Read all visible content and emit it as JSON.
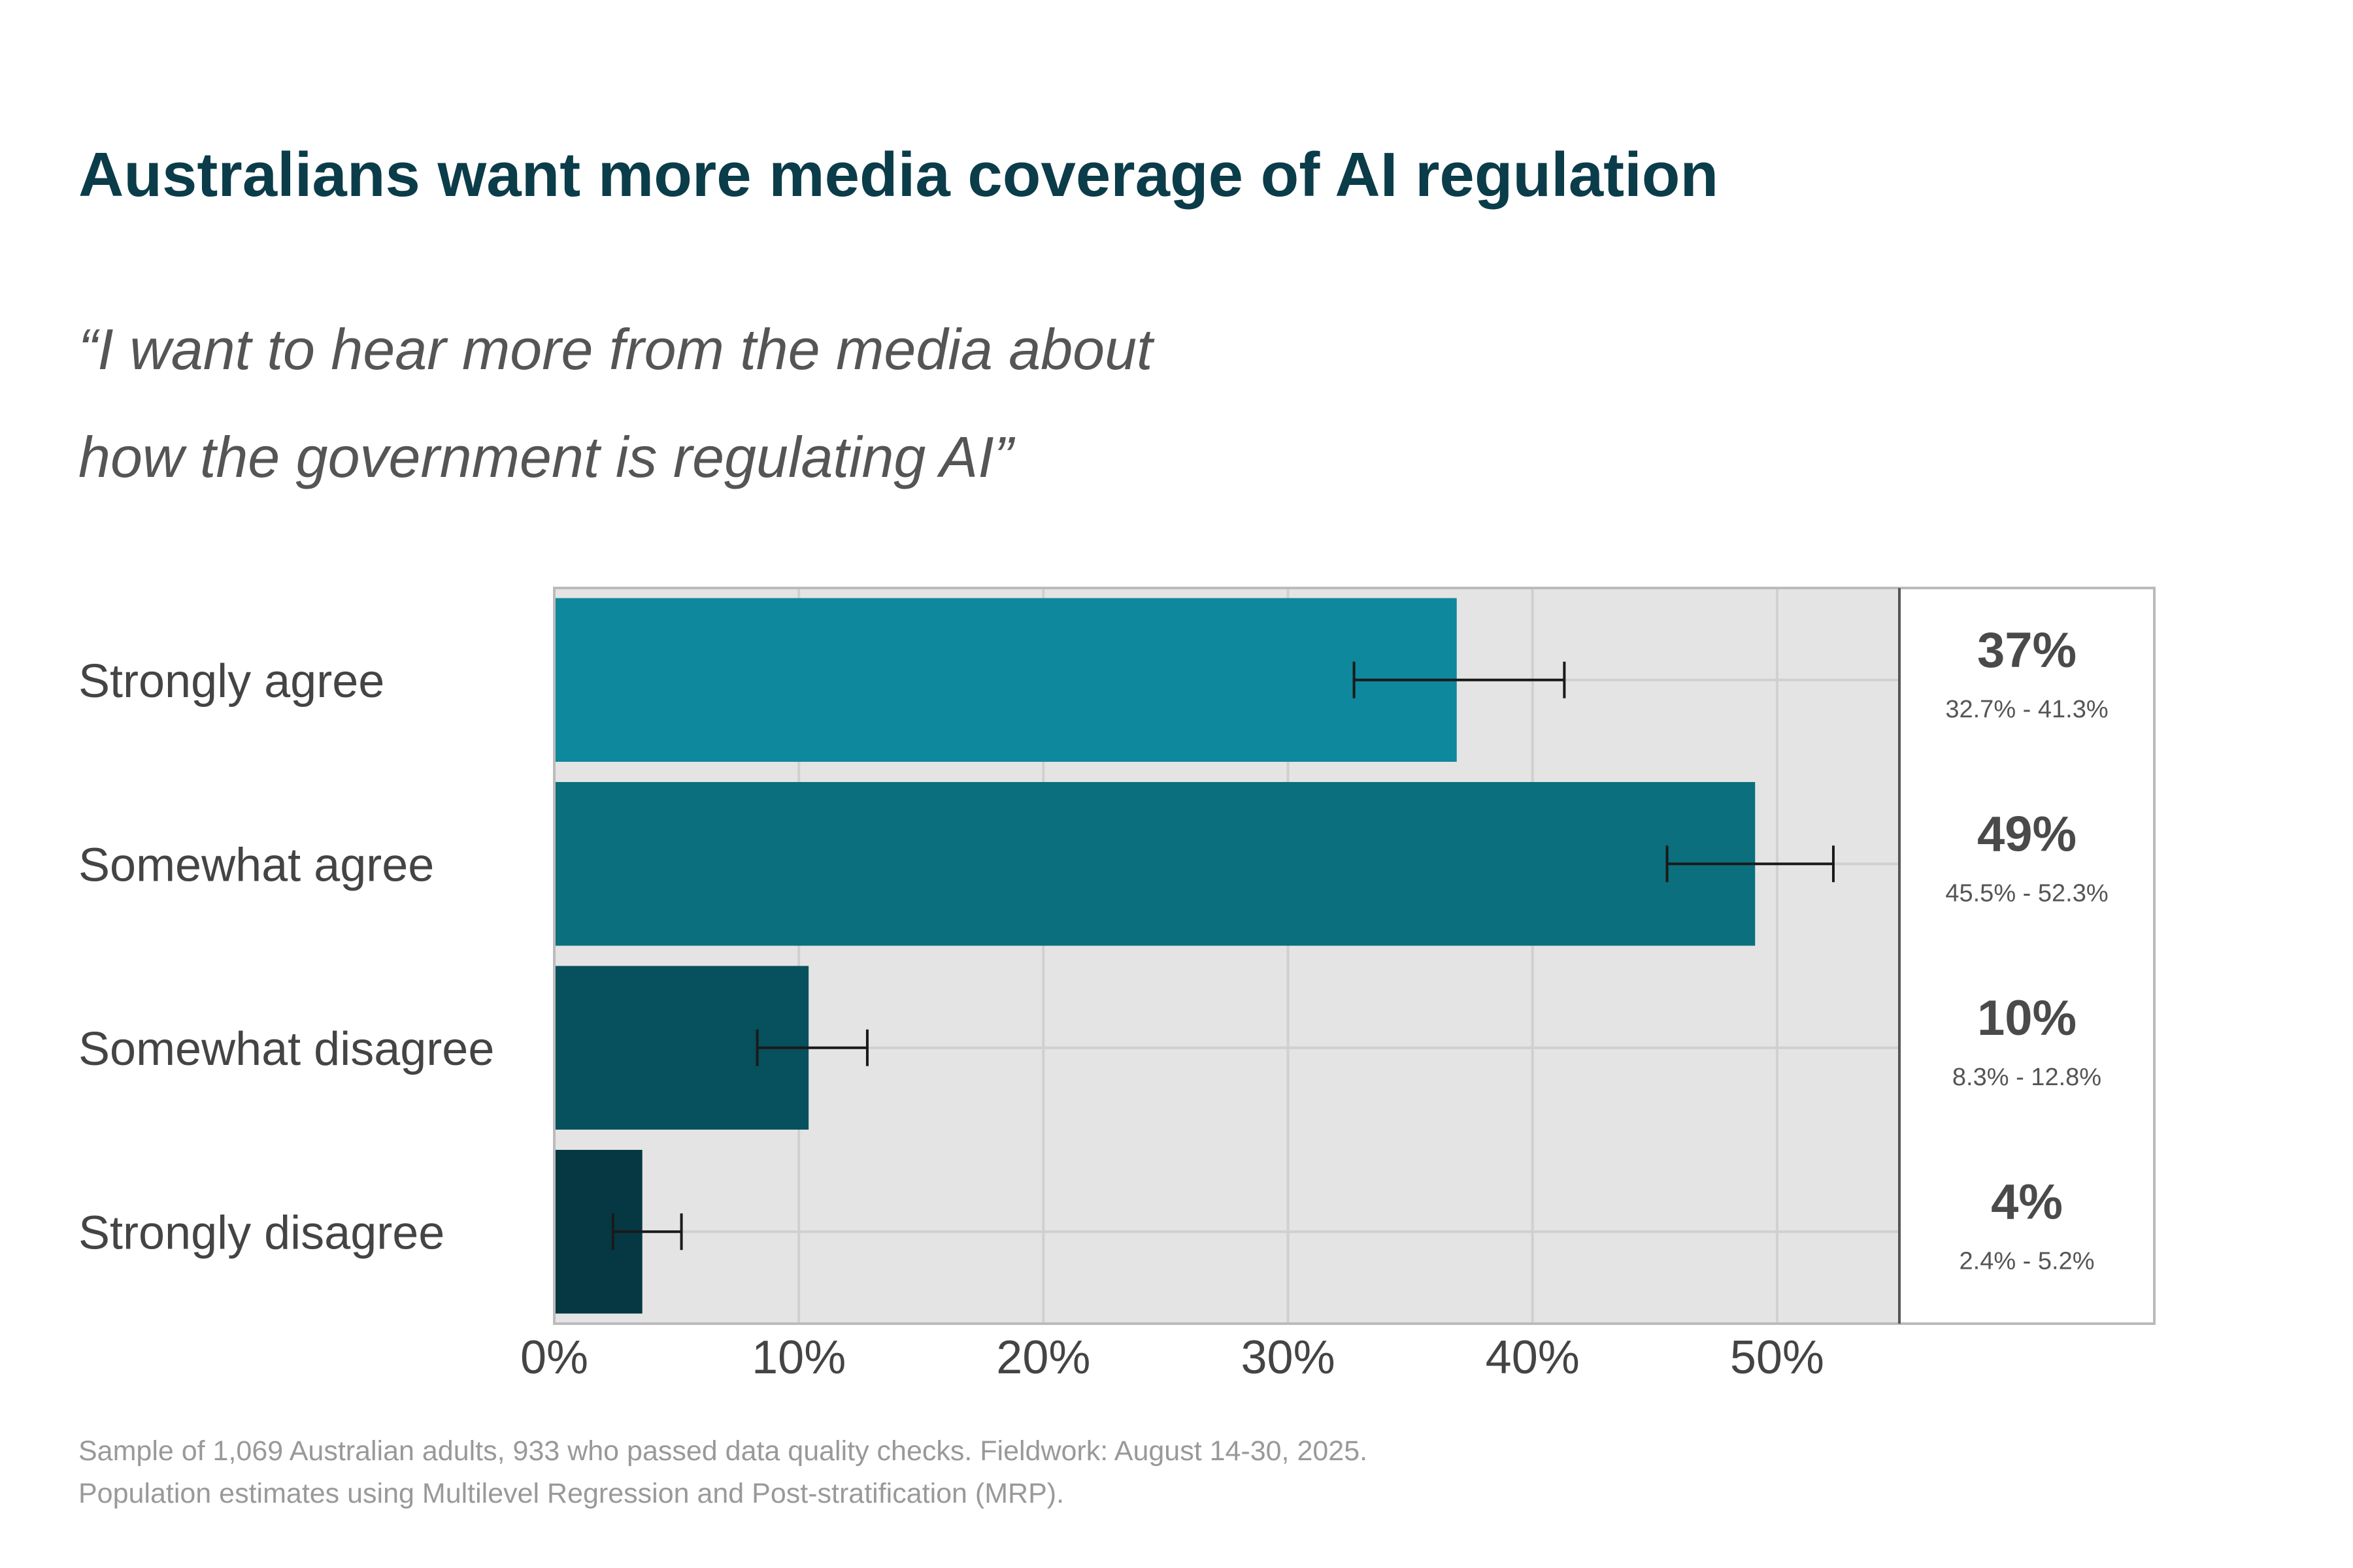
{
  "chart_data": {
    "type": "bar",
    "orientation": "horizontal",
    "title": "Australians want more media coverage of AI regulation",
    "subtitle_lines": [
      "“I want to hear more from the media about",
      "how the government is regulating AI”"
    ],
    "categories": [
      "Strongly agree",
      "Somewhat agree",
      "Somewhat disagree",
      "Strongly disagree"
    ],
    "values": [
      36.9,
      49.1,
      10.4,
      3.6
    ],
    "ci_low": [
      32.7,
      45.5,
      8.3,
      2.4
    ],
    "ci_high": [
      41.3,
      52.3,
      12.8,
      5.2
    ],
    "value_labels": [
      "37%",
      "49%",
      "10%",
      "4%"
    ],
    "ci_labels": [
      "32.7% - 41.3%",
      "45.5% - 52.3%",
      "8.3% - 12.8%",
      "2.4% - 5.2%"
    ],
    "bar_colors": [
      "#0e889c",
      "#0b6f7d",
      "#07505d",
      "#053842"
    ],
    "xlim": [
      0,
      55
    ],
    "xticks": [
      0,
      10,
      20,
      30,
      40,
      50
    ],
    "xtick_labels": [
      "0%",
      "10%",
      "20%",
      "30%",
      "40%",
      "50%"
    ],
    "grid": true,
    "xlabel": "",
    "ylabel": "",
    "footnotes": [
      "Sample of 1,069 Australian adults, 933 who passed data quality checks. Fieldwork: August 14-30, 2025.",
      "Population estimates using Multilevel Regression and Post-stratification (MRP)."
    ]
  },
  "colors": {
    "title": "#0b3c49",
    "panel_bg": "#e4e4e4",
    "grid": "#d0d0d0",
    "error_bar": "#1a1a1a"
  }
}
